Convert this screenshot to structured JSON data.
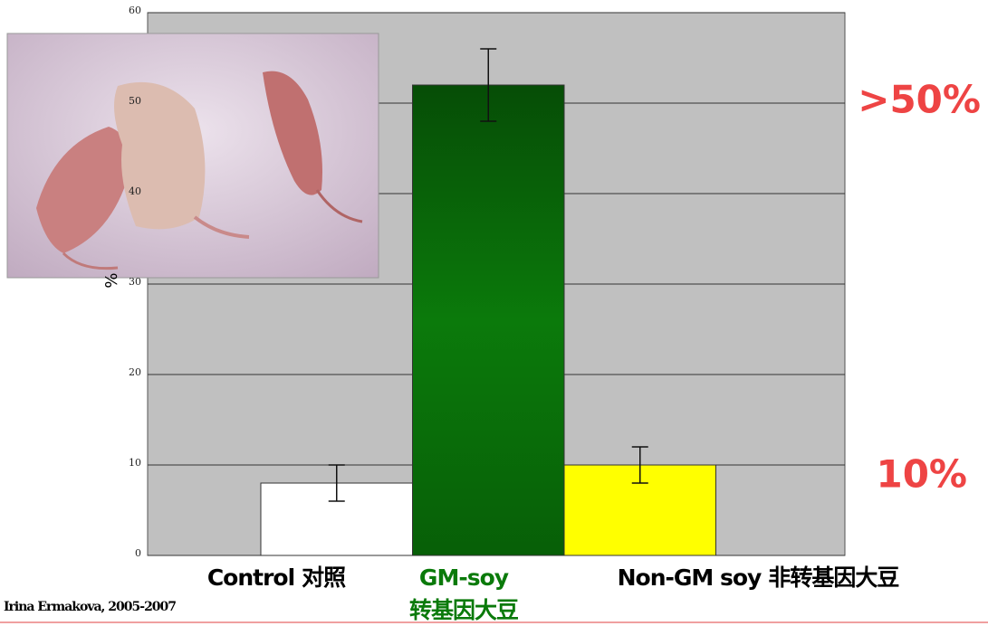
{
  "chart_data": {
    "type": "bar",
    "ylabel": "%",
    "categories": [
      [
        "Control",
        "对照"
      ],
      [
        "GM-soy",
        "转基因大豆"
      ],
      [
        "Non-GM soy",
        "非转基因大豆"
      ]
    ],
    "values": [
      8,
      52,
      10
    ],
    "errors": [
      2,
      4,
      2
    ],
    "colors": [
      "#ffffff",
      "#0b6e0b",
      "#ffff00"
    ],
    "category_colors": [
      "#000000",
      "#0a7a0a",
      "#000000"
    ],
    "ylim": [
      0,
      60
    ],
    "yticks": [
      0,
      10,
      20,
      30,
      40,
      50,
      60
    ],
    "grid": true,
    "annotations": [
      ">50%",
      "10%"
    ],
    "credit": "Irina Ermakova, 2005-2007"
  }
}
